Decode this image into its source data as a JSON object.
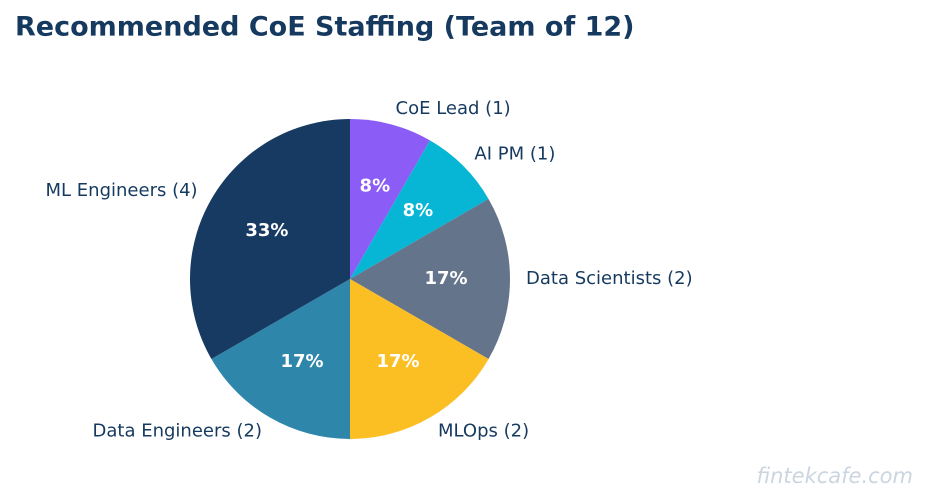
{
  "chart_data": {
    "type": "pie",
    "title": "Recommended CoE Staffing (Team of 12)",
    "categories": [
      "CoE Lead (1)",
      "AI PM (1)",
      "Data Scientists (2)",
      "MLOps (2)",
      "Data Engineers (2)",
      "ML Engineers (4)"
    ],
    "values": [
      8.33,
      8.33,
      16.67,
      16.67,
      16.67,
      33.33
    ],
    "value_labels": [
      "8%",
      "8%",
      "17%",
      "17%",
      "17%",
      "33%"
    ],
    "colors": [
      "#8b5cf6",
      "#06b6d4",
      "#64748b",
      "#fbbf24",
      "#2e86ab",
      "#173a63"
    ],
    "watermark": "fintekcafe.com"
  }
}
